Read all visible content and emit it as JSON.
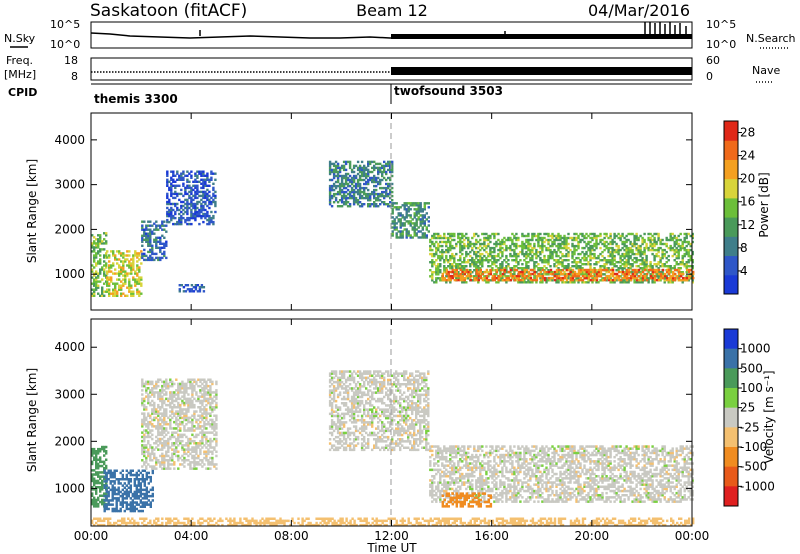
{
  "header": {
    "radar": "Saskatoon (fitACF)",
    "beam": "Beam 12",
    "date": "04/Mar/2016"
  },
  "noise_panel": {
    "left_label": "N.Sky",
    "left_ticks": [
      "10^5",
      "10^0"
    ],
    "right_ticks": [
      "10^5",
      "10^0"
    ],
    "right_label": "N.Search"
  },
  "freq_panel": {
    "left_label_1": "Freq.",
    "left_label_2": "[MHz]",
    "left_ticks": [
      "18",
      "8"
    ],
    "right_ticks": [
      "60",
      "0"
    ],
    "right_label": "Nave"
  },
  "cpid_panel": {
    "label": "CPID",
    "modes": [
      "themis 3300",
      "twofsound 3503"
    ]
  },
  "colors": {
    "power": [
      "#1a3ad6",
      "#2f57c8",
      "#3f7e8a",
      "#4a9a5a",
      "#6cbf3a",
      "#d8d43a",
      "#f4a020",
      "#f06a1a",
      "#e02818"
    ],
    "velocity": [
      "#1a3ad6",
      "#3a72a8",
      "#4a9a5a",
      "#7ad040",
      "#c8c8c0",
      "#f4c070",
      "#f08c20",
      "#e85a1a",
      "#e02020"
    ],
    "scatter_gray": "#c9c9c2"
  },
  "chart_data": [
    {
      "type": "heatmap",
      "title": "Power",
      "ylabel": "Slant Range [km]",
      "xlabel": "",
      "x_ticks": [
        "00:00",
        "04:00",
        "08:00",
        "12:00",
        "16:00",
        "20:00",
        "00:00"
      ],
      "xlim_hours": [
        0,
        24
      ],
      "ylim_km": [
        200,
        4600
      ],
      "y_ticks": [
        "1000",
        "2000",
        "3000",
        "4000"
      ],
      "y_tick_values": [
        1000,
        2000,
        3000,
        4000
      ],
      "colorbar": {
        "label": "Power [dB]",
        "ticks": [
          "28",
          "24",
          "20",
          "16",
          "12",
          "8",
          "4"
        ],
        "range": [
          0,
          30
        ]
      },
      "scatter_regions": [
        {
          "hours": [
            0.0,
            0.6
          ],
          "range_km": [
            500,
            1900
          ],
          "power_db": 14
        },
        {
          "hours": [
            0.6,
            2.0
          ],
          "range_km": [
            500,
            1500
          ],
          "power_db": 18
        },
        {
          "hours": [
            2.0,
            3.0
          ],
          "range_km": [
            1300,
            2200
          ],
          "power_db": 7
        },
        {
          "hours": [
            3.0,
            5.0
          ],
          "range_km": [
            2100,
            3300
          ],
          "power_db": 5
        },
        {
          "hours": [
            3.5,
            4.5
          ],
          "range_km": [
            600,
            750
          ],
          "power_db": 6
        },
        {
          "hours": [
            9.5,
            12.0
          ],
          "range_km": [
            2500,
            3500
          ],
          "power_db": 9
        },
        {
          "hours": [
            12.0,
            13.5
          ],
          "range_km": [
            1800,
            2600
          ],
          "power_db": 10
        },
        {
          "hours": [
            13.5,
            24.0
          ],
          "range_km": [
            800,
            1900
          ],
          "power_db": 14
        },
        {
          "hours": [
            14.0,
            24.0
          ],
          "range_km": [
            850,
            1100
          ],
          "power_db": 24
        }
      ]
    },
    {
      "type": "heatmap",
      "title": "Velocity",
      "ylabel": "Slant Range [km]",
      "xlabel": "Time UT",
      "x_ticks": [
        "00:00",
        "04:00",
        "08:00",
        "12:00",
        "16:00",
        "20:00",
        "00:00"
      ],
      "xlim_hours": [
        0,
        24
      ],
      "ylim_km": [
        200,
        4600
      ],
      "y_ticks": [
        "1000",
        "2000",
        "3000",
        "4000"
      ],
      "y_tick_values": [
        1000,
        2000,
        3000,
        4000
      ],
      "colorbar": {
        "label": "Velocity [m s⁻¹]",
        "ticks": [
          "1000",
          "500",
          "100",
          "25",
          "-25",
          "-100",
          "-500",
          "-1000"
        ]
      },
      "scatter_regions": [
        {
          "hours": [
            0.0,
            0.6
          ],
          "range_km": [
            600,
            1900
          ],
          "velocity_ms": 200
        },
        {
          "hours": [
            0.5,
            2.5
          ],
          "range_km": [
            500,
            1400
          ],
          "velocity_ms": 800
        },
        {
          "hours": [
            2.0,
            5.0
          ],
          "range_km": [
            1400,
            3300
          ],
          "velocity_ms": 0
        },
        {
          "hours": [
            9.5,
            13.5
          ],
          "range_km": [
            1800,
            3500
          ],
          "velocity_ms": 0
        },
        {
          "hours": [
            13.5,
            24.0
          ],
          "range_km": [
            700,
            1900
          ],
          "velocity_ms": 0
        },
        {
          "hours": [
            14.0,
            16.0
          ],
          "range_km": [
            600,
            900
          ],
          "velocity_ms": -150
        },
        {
          "hours": [
            0.0,
            24.0
          ],
          "range_km": [
            200,
            350
          ],
          "velocity_ms": -60
        }
      ]
    }
  ]
}
